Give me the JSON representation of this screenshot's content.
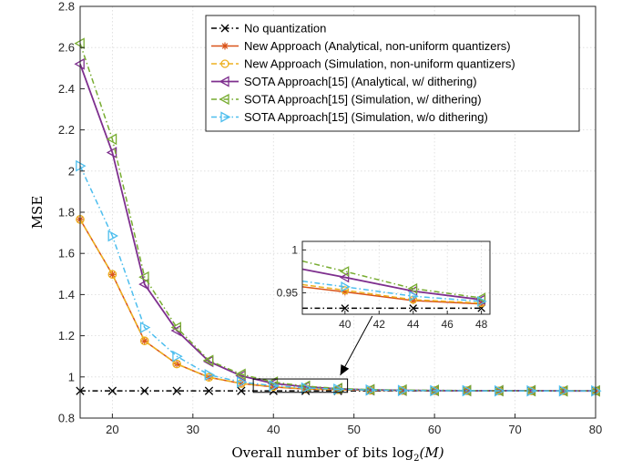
{
  "chart_data": {
    "type": "line",
    "title": "",
    "xlabel": "Overall number of bits ",
    "xlabel_math": "log",
    "xlabel_sub": "2",
    "xlabel_arg": "(M)",
    "ylabel": "MSE",
    "xlim": [
      16,
      80
    ],
    "ylim": [
      0.8,
      2.8
    ],
    "xticks": [
      "20",
      "30",
      "40",
      "50",
      "60",
      "70",
      "80"
    ],
    "yticks": [
      "0.8",
      "1",
      "1.2",
      "1.4",
      "1.6",
      "1.8",
      "2",
      "2.2",
      "2.4",
      "2.6",
      "2.8"
    ],
    "grid": true,
    "legend_position": "top-right",
    "x": [
      16,
      20,
      24,
      28,
      32,
      36,
      40,
      44,
      48,
      52,
      56,
      60,
      64,
      68,
      72,
      76,
      80
    ],
    "series": [
      {
        "name": "No quantization",
        "color": "#000000",
        "dash": "6 3 1.5 3",
        "marker": "x",
        "values": [
          0.932,
          0.932,
          0.932,
          0.932,
          0.932,
          0.932,
          0.932,
          0.932,
          0.932,
          0.932,
          0.932,
          0.932,
          0.932,
          0.932,
          0.932,
          0.932,
          0.932
        ]
      },
      {
        "name": "New Approach (Analytical, non-uniform quantizers)",
        "color": "#d95319",
        "dash": "",
        "marker": "star",
        "values": [
          1.765,
          1.498,
          1.175,
          1.063,
          0.998,
          0.968,
          0.951,
          0.941,
          0.937,
          0.935,
          0.934,
          0.933,
          0.933,
          0.932,
          0.932,
          0.932,
          0.932
        ]
      },
      {
        "name": "New Approach (Simulation, non-uniform quantizers)",
        "color": "#edb120",
        "dash": "6 3",
        "marker": "circle",
        "values": [
          1.765,
          1.498,
          1.175,
          1.063,
          0.998,
          0.968,
          0.953,
          0.942,
          0.938,
          0.935,
          0.934,
          0.933,
          0.933,
          0.932,
          0.932,
          0.932,
          0.932
        ]
      },
      {
        "name": "SOTA Approach[15] (Analytical, w/ dithering)",
        "color": "#7e2f8e",
        "dash": "",
        "marker": "triangle-left",
        "values": [
          2.52,
          2.09,
          1.45,
          1.225,
          1.075,
          1.005,
          0.968,
          0.952,
          0.942,
          0.937,
          0.935,
          0.934,
          0.933,
          0.933,
          0.933,
          0.932,
          0.932
        ]
      },
      {
        "name": "SOTA Approach[15] (Simulation, w/ dithering)",
        "color": "#77ac30",
        "dash": "6 3 1.5 3",
        "marker": "triangle-left",
        "values": [
          2.62,
          2.155,
          1.485,
          1.24,
          1.08,
          1.013,
          0.975,
          0.955,
          0.944,
          0.938,
          0.936,
          0.935,
          0.934,
          0.933,
          0.933,
          0.932,
          0.932
        ]
      },
      {
        "name": "SOTA Approach[15] (Simulation, w/o dithering)",
        "color": "#4dbeee",
        "dash": "6 3 1.5 3",
        "marker": "triangle-right",
        "values": [
          2.025,
          1.685,
          1.24,
          1.1,
          1.01,
          0.975,
          0.957,
          0.946,
          0.94,
          0.936,
          0.934,
          0.933,
          0.933,
          0.932,
          0.932,
          0.932,
          0.932
        ]
      }
    ],
    "inset": {
      "xlim": [
        37.5,
        48.5
      ],
      "ylim": [
        0.925,
        1.01
      ],
      "xticks": [
        "40",
        "42",
        "44",
        "46",
        "48"
      ],
      "yticks": [
        "0.95",
        "1"
      ],
      "x": [
        40,
        44,
        48
      ],
      "series_values": [
        [
          0.932,
          0.932,
          0.932
        ],
        [
          0.951,
          0.941,
          0.937
        ],
        [
          0.953,
          0.942,
          0.938
        ],
        [
          0.968,
          0.952,
          0.942
        ],
        [
          0.975,
          0.955,
          0.944
        ],
        [
          0.957,
          0.946,
          0.94
        ]
      ],
      "zoom_box": {
        "xlim": [
          37.5,
          49.2
        ],
        "ylim": [
          0.925,
          0.99
        ]
      }
    }
  }
}
